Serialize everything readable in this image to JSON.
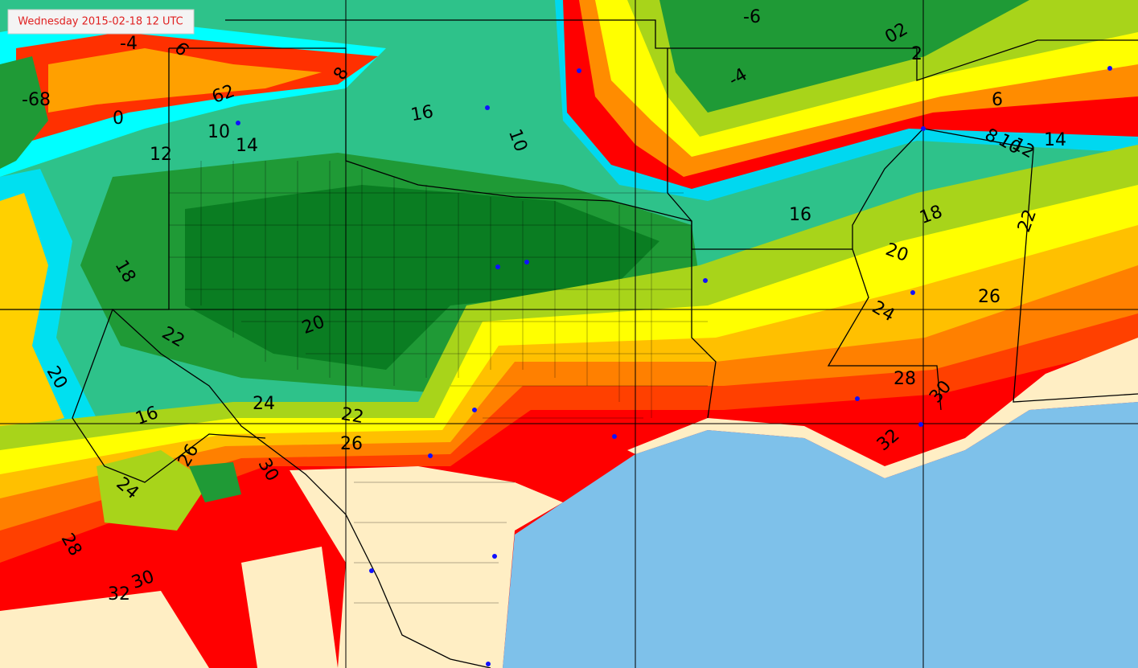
{
  "timestamp": "Wednesday 2015-02-18 12 UTC",
  "contour_labels": [
    "-6",
    "02",
    "2",
    "-4",
    "6",
    "8",
    "10",
    "12",
    "14",
    "16",
    "10",
    "8",
    "6",
    "-4",
    "62",
    "10",
    "14",
    "12",
    "-68",
    "0",
    "18",
    "16",
    "18",
    "20",
    "22",
    "24",
    "26",
    "28",
    "30",
    "32",
    "20",
    "22",
    "20",
    "16",
    "24",
    "22",
    "26",
    "30",
    "26",
    "24",
    "28",
    "32",
    "30"
  ]
}
